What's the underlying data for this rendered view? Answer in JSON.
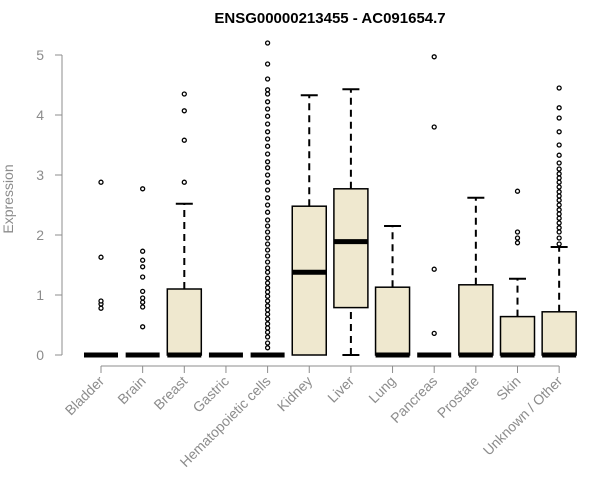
{
  "chart_data": {
    "type": "box",
    "title": "ENSG00000213455 - AC091654.7",
    "ylabel": "Expression",
    "xlabel": "",
    "ylim": [
      0,
      5.2
    ],
    "yticks": [
      0,
      1,
      2,
      3,
      4,
      5
    ],
    "box_fill": "#efe8cf",
    "box_stroke": "#000000",
    "axis_color": "#8c8c8c",
    "categories": [
      "Bladder",
      "Brain",
      "Breast",
      "Gastric",
      "Hematopoietic cells",
      "Kidney",
      "Liver",
      "Lung",
      "Pancreas",
      "Prostate",
      "Skin",
      "Unknown / Other"
    ],
    "boxes": [
      {
        "q1": 0,
        "median": 0,
        "q3": 0,
        "whisker_low": 0,
        "whisker_high": 0,
        "outliers": [
          0.78,
          0.85,
          0.9,
          1.63,
          2.88
        ]
      },
      {
        "q1": 0,
        "median": 0,
        "q3": 0,
        "whisker_low": 0,
        "whisker_high": 0,
        "outliers": [
          0.47,
          0.8,
          0.88,
          0.95,
          1.06,
          1.3,
          1.47,
          1.58,
          1.73,
          2.77
        ]
      },
      {
        "q1": 0,
        "median": 0,
        "q3": 1.1,
        "whisker_low": 0,
        "whisker_high": 2.52,
        "outliers": [
          2.88,
          3.58,
          4.07,
          4.35
        ]
      },
      {
        "q1": 0,
        "median": 0,
        "q3": 0,
        "whisker_low": 0,
        "whisker_high": 0,
        "outliers": []
      },
      {
        "q1": 0,
        "median": 0,
        "q3": 0,
        "whisker_low": 0,
        "whisker_high": 0,
        "outliers": [
          0.12,
          0.2,
          0.3,
          0.38,
          0.45,
          0.52,
          0.6,
          0.68,
          0.75,
          0.82,
          0.9,
          0.98,
          1.05,
          1.12,
          1.2,
          1.28,
          1.38,
          1.45,
          1.55,
          1.65,
          1.75,
          1.85,
          1.95,
          2.05,
          2.15,
          2.25,
          2.38,
          2.5,
          2.62,
          2.75,
          2.88,
          3.0,
          3.12,
          3.22,
          3.35,
          3.48,
          3.6,
          3.72,
          3.85,
          3.98,
          4.1,
          4.22,
          4.35,
          4.42,
          4.6,
          4.85,
          5.2
        ]
      },
      {
        "q1": 0,
        "median": 1.38,
        "q3": 2.48,
        "whisker_low": 0,
        "whisker_high": 4.33,
        "outliers": []
      },
      {
        "q1": 0.79,
        "median": 1.89,
        "q3": 2.77,
        "whisker_low": 0,
        "whisker_high": 4.43,
        "outliers": []
      },
      {
        "q1": 0,
        "median": 0,
        "q3": 1.13,
        "whisker_low": 0,
        "whisker_high": 2.15,
        "outliers": []
      },
      {
        "q1": 0,
        "median": 0,
        "q3": 0,
        "whisker_low": 0,
        "whisker_high": 0,
        "outliers": [
          0.36,
          1.43,
          3.8,
          4.97
        ]
      },
      {
        "q1": 0,
        "median": 0,
        "q3": 1.17,
        "whisker_low": 0,
        "whisker_high": 2.62,
        "outliers": []
      },
      {
        "q1": 0,
        "median": 0,
        "q3": 0.64,
        "whisker_low": 0,
        "whisker_high": 1.27,
        "outliers": [
          1.87,
          1.95,
          2.05,
          2.73
        ]
      },
      {
        "q1": 0,
        "median": 0,
        "q3": 0.72,
        "whisker_low": 0,
        "whisker_high": 1.8,
        "outliers": [
          1.85,
          1.95,
          2.05,
          2.12,
          2.2,
          2.28,
          2.35,
          2.42,
          2.5,
          2.58,
          2.65,
          2.72,
          2.8,
          2.88,
          2.95,
          3.02,
          3.1,
          3.2,
          3.33,
          3.5,
          3.72,
          3.95,
          4.12,
          4.45
        ]
      }
    ]
  }
}
